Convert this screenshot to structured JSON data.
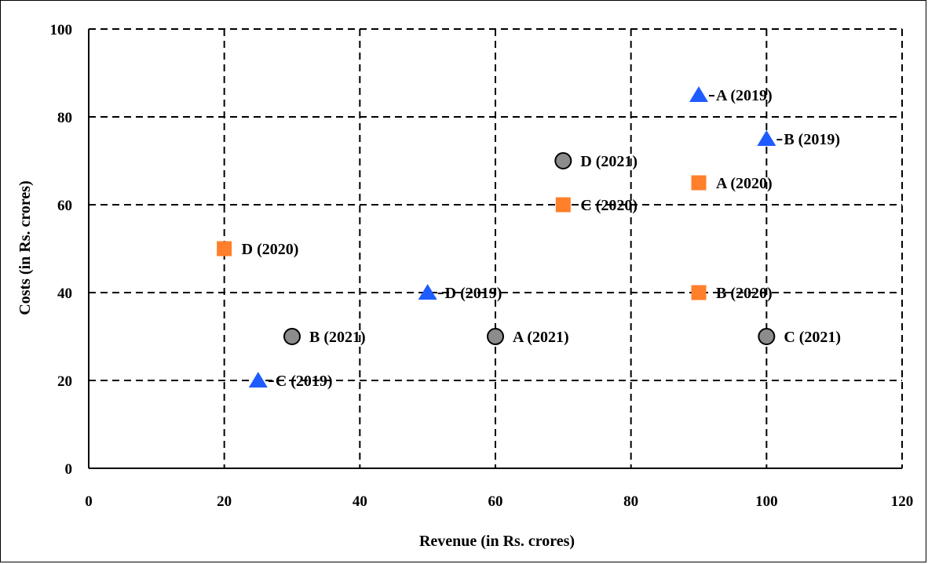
{
  "chart_data": {
    "type": "scatter",
    "xlabel": "Revenue (in Rs. crores)",
    "ylabel": "Costs (in Rs. crores)",
    "xlim": [
      0,
      120
    ],
    "ylim": [
      0,
      100
    ],
    "x_ticks": [
      0,
      20,
      40,
      60,
      80,
      100,
      120
    ],
    "y_ticks": [
      0,
      20,
      40,
      60,
      80,
      100
    ],
    "grid": "dashed",
    "series": [
      {
        "marker": "triangle",
        "color": "#1f5cff",
        "points": [
          {
            "label": "A (2019)",
            "x": 90,
            "y": 85
          },
          {
            "label": "B (2019)",
            "x": 100,
            "y": 75
          },
          {
            "label": "C (2019)",
            "x": 25,
            "y": 20
          },
          {
            "label": "D (2019)",
            "x": 50,
            "y": 40
          }
        ]
      },
      {
        "marker": "square",
        "color": "#ff7f2a",
        "points": [
          {
            "label": "A (2020)",
            "x": 90,
            "y": 65
          },
          {
            "label": "B (2020)",
            "x": 90,
            "y": 40
          },
          {
            "label": "C (2020)",
            "x": 70,
            "y": 60
          },
          {
            "label": "D (2020)",
            "x": 20,
            "y": 50
          }
        ]
      },
      {
        "marker": "circle",
        "color": "#8c8c8c",
        "points": [
          {
            "label": "A (2021)",
            "x": 60,
            "y": 30
          },
          {
            "label": "B (2021)",
            "x": 30,
            "y": 30
          },
          {
            "label": "C (2021)",
            "x": 100,
            "y": 30
          },
          {
            "label": "D (2021)",
            "x": 70,
            "y": 70
          }
        ]
      }
    ]
  }
}
